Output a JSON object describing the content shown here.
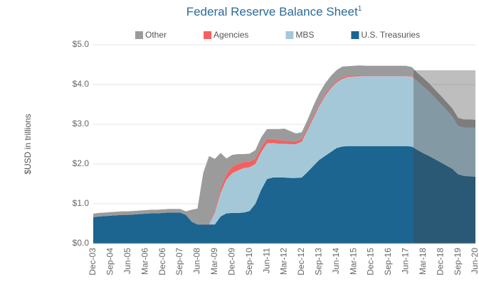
{
  "chart_data": {
    "type": "stacked_area",
    "title": "Federal Reserve Balance Sheet",
    "title_superscript": "1",
    "ylabel": "$USD in trillions",
    "categories": [
      "Dec-03",
      null,
      null,
      "Sep-04",
      null,
      null,
      "Jun-05",
      null,
      null,
      "Mar-06",
      null,
      null,
      "Dec-06",
      null,
      null,
      "Sep-07",
      null,
      null,
      "Jun-08",
      null,
      null,
      "Mar-09",
      null,
      null,
      "Dec-09",
      null,
      null,
      "Sep-10",
      null,
      null,
      "Jun-11",
      null,
      null,
      "Mar-12",
      null,
      null,
      "Dec-12",
      null,
      null,
      "Sep-13",
      null,
      null,
      "Jun-14",
      null,
      null,
      "Mar-15",
      null,
      null,
      "Dec-15",
      null,
      null,
      "Sep-16",
      null,
      null,
      "Jun-17",
      null,
      null,
      "Mar-18",
      null,
      null,
      "Dec-18",
      null,
      null,
      "Sep-19",
      null,
      null,
      "Jun-20"
    ],
    "series": [
      {
        "name": "U.S. Treasuries",
        "color": "#1b6590",
        "values": [
          0.66,
          0.68,
          0.69,
          0.7,
          0.71,
          0.72,
          0.72,
          0.73,
          0.74,
          0.75,
          0.76,
          0.76,
          0.77,
          0.78,
          0.78,
          0.78,
          0.72,
          0.55,
          0.48,
          0.48,
          0.48,
          0.48,
          0.68,
          0.76,
          0.77,
          0.77,
          0.78,
          0.82,
          1.0,
          1.35,
          1.62,
          1.66,
          1.66,
          1.66,
          1.65,
          1.65,
          1.66,
          1.8,
          1.95,
          2.1,
          2.2,
          2.3,
          2.4,
          2.44,
          2.45,
          2.45,
          2.45,
          2.45,
          2.45,
          2.45,
          2.45,
          2.45,
          2.45,
          2.45,
          2.45,
          2.44,
          2.35,
          2.27,
          2.2,
          2.12,
          2.04,
          1.96,
          1.88,
          1.74,
          1.7,
          1.69,
          1.68
        ]
      },
      {
        "name": "MBS",
        "color": "#a5c8d8",
        "values": [
          0,
          0,
          0,
          0,
          0,
          0,
          0,
          0,
          0,
          0,
          0,
          0,
          0,
          0,
          0,
          0,
          0,
          0,
          0,
          0,
          0,
          0.3,
          0.6,
          0.85,
          1.0,
          1.07,
          1.12,
          1.1,
          1.0,
          0.95,
          0.9,
          0.87,
          0.85,
          0.85,
          0.85,
          0.85,
          0.9,
          1.05,
          1.2,
          1.35,
          1.5,
          1.6,
          1.65,
          1.7,
          1.74,
          1.75,
          1.76,
          1.76,
          1.76,
          1.76,
          1.76,
          1.76,
          1.76,
          1.76,
          1.76,
          1.76,
          1.73,
          1.68,
          1.62,
          1.55,
          1.48,
          1.4,
          1.32,
          1.22,
          1.22,
          1.23,
          1.23
        ]
      },
      {
        "name": "Agencies",
        "color": "#f4605f",
        "values": [
          0,
          0,
          0,
          0,
          0,
          0,
          0,
          0,
          0,
          0,
          0,
          0,
          0,
          0,
          0,
          0,
          0,
          0,
          0,
          0,
          0.02,
          0.05,
          0.1,
          0.13,
          0.16,
          0.16,
          0.15,
          0.14,
          0.13,
          0.12,
          0.11,
          0.1,
          0.09,
          0.08,
          0.08,
          0.07,
          0.07,
          0.06,
          0.06,
          0.05,
          0.05,
          0.04,
          0.04,
          0.04,
          0.03,
          0.03,
          0.03,
          0.02,
          0.02,
          0.02,
          0.02,
          0.02,
          0.02,
          0.02,
          0.02,
          0.02,
          0.01,
          0.01,
          0.01,
          0,
          0,
          0,
          0,
          0,
          0,
          0,
          0
        ]
      },
      {
        "name": "Other",
        "color": "#9b9b9b",
        "values": [
          0.09,
          0.09,
          0.09,
          0.09,
          0.09,
          0.09,
          0.09,
          0.09,
          0.09,
          0.09,
          0.09,
          0.09,
          0.09,
          0.09,
          0.09,
          0.09,
          0.09,
          0.3,
          0.4,
          1.3,
          1.7,
          1.3,
          0.9,
          0.4,
          0.3,
          0.25,
          0.2,
          0.2,
          0.22,
          0.25,
          0.25,
          0.25,
          0.28,
          0.3,
          0.25,
          0.2,
          0.17,
          0.2,
          0.25,
          0.27,
          0.27,
          0.27,
          0.27,
          0.27,
          0.24,
          0.24,
          0.24,
          0.24,
          0.24,
          0.24,
          0.24,
          0.24,
          0.24,
          0.24,
          0.24,
          0.22,
          0.2,
          0.2,
          0.2,
          0.2,
          0.2,
          0.2,
          0.2,
          0.2,
          0.2,
          0.2,
          0.2
        ]
      }
    ],
    "ylim": [
      0,
      5
    ],
    "yticks": [
      {
        "value": 0,
        "label": "$0.0"
      },
      {
        "value": 1,
        "label": "$1.0"
      },
      {
        "value": 2,
        "label": "$2.0"
      },
      {
        "value": 3,
        "label": "$3.0"
      },
      {
        "value": 4,
        "label": "$4.0"
      },
      {
        "value": 5,
        "label": "$5.0"
      }
    ],
    "grid": true
  }
}
